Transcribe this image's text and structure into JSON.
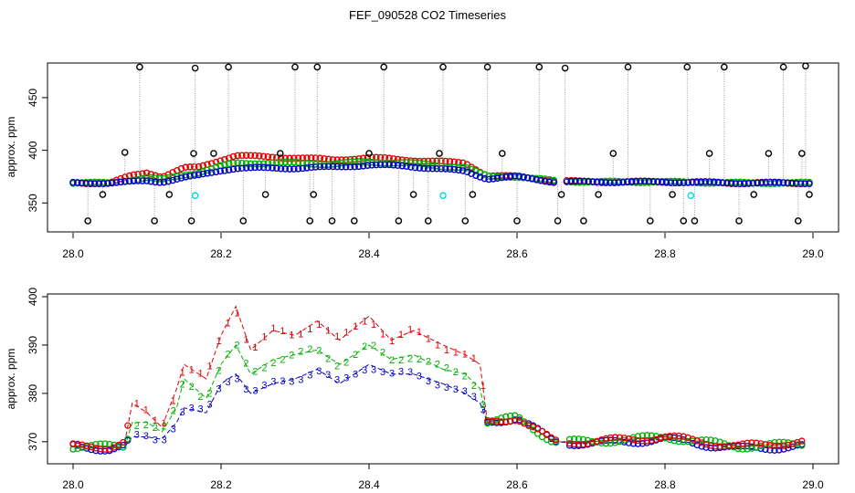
{
  "chart_data": [
    {
      "type": "scatter",
      "title": "FEF_090528  CO2 Timeseries",
      "ylabel": "approx. ppm",
      "xlabel": "",
      "xlim": [
        28.0,
        29.0
      ],
      "ylim": [
        326,
        482
      ],
      "x_ticks": [
        "28.0",
        "28.2",
        "28.4",
        "28.6",
        "28.8",
        "29.0"
      ],
      "y_ticks": [
        "350",
        "400",
        "450"
      ],
      "colors": {
        "series1": "#e00000",
        "series2": "#00b000",
        "series3": "#0000c8",
        "series0": "#000000",
        "cyan": "#00d8e0",
        "connector": "#9a9a9a"
      },
      "series": [
        {
          "key": "series1",
          "color": "#e00000",
          "x": [
            28.0,
            28.05,
            28.08,
            28.1,
            28.12,
            28.15,
            28.17,
            28.2,
            28.22,
            28.25,
            28.3,
            28.35,
            28.4,
            28.45,
            28.5,
            28.53,
            28.56,
            28.6,
            28.65,
            28.7,
            28.8,
            28.9,
            29.0
          ],
          "y": [
            369,
            369,
            376,
            379,
            375,
            383,
            384,
            391,
            395,
            394,
            393,
            391,
            393,
            391,
            389,
            388,
            376,
            375,
            371,
            370,
            370,
            369,
            369
          ]
        },
        {
          "key": "series2",
          "color": "#00b000",
          "x": [
            28.0,
            28.05,
            28.08,
            28.1,
            28.12,
            28.15,
            28.17,
            28.2,
            28.22,
            28.25,
            28.3,
            28.35,
            28.4,
            28.45,
            28.5,
            28.53,
            28.56,
            28.6,
            28.65,
            28.7,
            28.8,
            28.9,
            29.0
          ],
          "y": [
            369,
            369,
            372,
            374,
            372,
            377,
            379,
            385,
            388,
            388,
            388,
            387,
            389,
            388,
            385,
            384,
            375,
            375,
            371,
            370,
            370,
            369,
            369
          ]
        },
        {
          "key": "series3",
          "color": "#0000c8",
          "x": [
            28.0,
            28.05,
            28.08,
            28.1,
            28.12,
            28.15,
            28.17,
            28.2,
            28.22,
            28.25,
            28.3,
            28.35,
            28.4,
            28.45,
            28.5,
            28.53,
            28.56,
            28.6,
            28.65,
            28.7,
            28.8,
            28.9,
            29.0
          ],
          "y": [
            369,
            369,
            370,
            371,
            370,
            374,
            376,
            381,
            383,
            383,
            383,
            384,
            386,
            385,
            382,
            380,
            373,
            375,
            370,
            370,
            370,
            369,
            369
          ]
        },
        {
          "key": "series0",
          "color": "#000000",
          "x": [
            28.02,
            28.04,
            28.07,
            28.09,
            28.11,
            28.13,
            28.16,
            28.163,
            28.165,
            28.19,
            28.21,
            28.23,
            28.26,
            28.28,
            28.3,
            28.32,
            28.325,
            28.33,
            28.35,
            28.38,
            28.4,
            28.42,
            28.44,
            28.46,
            28.48,
            28.495,
            28.5,
            28.53,
            28.54,
            28.56,
            28.58,
            28.6,
            28.63,
            28.655,
            28.66,
            28.665,
            28.69,
            28.71,
            28.73,
            28.75,
            28.78,
            28.81,
            28.825,
            28.83,
            28.84,
            28.86,
            28.88,
            28.9,
            28.92,
            28.94,
            28.96,
            28.98,
            28.985,
            28.99,
            28.995
          ],
          "y": [
            333,
            358,
            398,
            479,
            333,
            358,
            333,
            397,
            478,
            397,
            479,
            333,
            358,
            397,
            479,
            333,
            358,
            479,
            333,
            333,
            397,
            479,
            333,
            358,
            333,
            397,
            479,
            333,
            358,
            479,
            397,
            333,
            479,
            333,
            358,
            478,
            333,
            358,
            397,
            479,
            333,
            358,
            333,
            479,
            333,
            397,
            479,
            333,
            358,
            397,
            479,
            333,
            397,
            480,
            358
          ]
        },
        {
          "key": "cyan",
          "color": "#00d8e0",
          "x": [
            28.165,
            28.5,
            28.835
          ],
          "y": [
            357,
            357,
            357
          ]
        }
      ]
    },
    {
      "type": "line",
      "title": "",
      "ylabel": "approx. ppm",
      "xlabel": "",
      "xlim": [
        28.0,
        29.0
      ],
      "ylim": [
        366,
        400
      ],
      "x_ticks": [
        "28.0",
        "28.2",
        "28.4",
        "28.6",
        "28.8",
        "29.0"
      ],
      "y_ticks": [
        "370",
        "380",
        "390",
        "400"
      ],
      "series": [
        {
          "name": "1",
          "color": "#e00000",
          "x": [
            28.0,
            28.05,
            28.07,
            28.08,
            28.1,
            28.12,
            28.14,
            28.15,
            28.18,
            28.2,
            28.22,
            28.24,
            28.27,
            28.3,
            28.33,
            28.36,
            28.4,
            28.43,
            28.46,
            28.5,
            28.53,
            28.55,
            28.56,
            28.6,
            28.65,
            28.7,
            28.8,
            28.9,
            28.98
          ],
          "y": [
            369,
            369,
            370,
            378,
            376,
            373,
            381,
            386,
            383,
            392,
            398,
            389,
            393,
            392,
            395,
            391,
            396,
            391,
            393,
            390,
            388,
            386,
            374,
            375,
            370,
            370,
            371,
            369,
            370
          ]
        },
        {
          "name": "2",
          "color": "#00b000",
          "x": [
            28.0,
            28.05,
            28.07,
            28.08,
            28.1,
            28.12,
            28.14,
            28.15,
            28.18,
            28.2,
            28.22,
            28.24,
            28.27,
            28.3,
            28.33,
            28.36,
            28.4,
            28.43,
            28.46,
            28.5,
            28.53,
            28.55,
            28.56,
            28.6,
            28.65,
            28.7,
            28.8,
            28.9,
            28.98
          ],
          "y": [
            369,
            369,
            369,
            374,
            374,
            372,
            377,
            383,
            379,
            386,
            390,
            384,
            387,
            388,
            389,
            386,
            390,
            387,
            388,
            385,
            384,
            381,
            374,
            375,
            370,
            370,
            371,
            369,
            369.5
          ]
        },
        {
          "name": "3",
          "color": "#0000c8",
          "x": [
            28.0,
            28.05,
            28.07,
            28.08,
            28.1,
            28.12,
            28.14,
            28.15,
            28.18,
            28.2,
            28.22,
            28.24,
            28.27,
            28.3,
            28.33,
            28.36,
            28.4,
            28.43,
            28.46,
            28.5,
            28.53,
            28.55,
            28.56,
            28.6,
            28.65,
            28.7,
            28.8,
            28.9,
            28.98
          ],
          "y": [
            369,
            368.5,
            369,
            371,
            371,
            370.5,
            374,
            377,
            376,
            382,
            384,
            380,
            382,
            383,
            385,
            382,
            386,
            384,
            384,
            382,
            380,
            378,
            374,
            375,
            370,
            369.5,
            370.5,
            368.5,
            369
          ]
        }
      ]
    }
  ]
}
